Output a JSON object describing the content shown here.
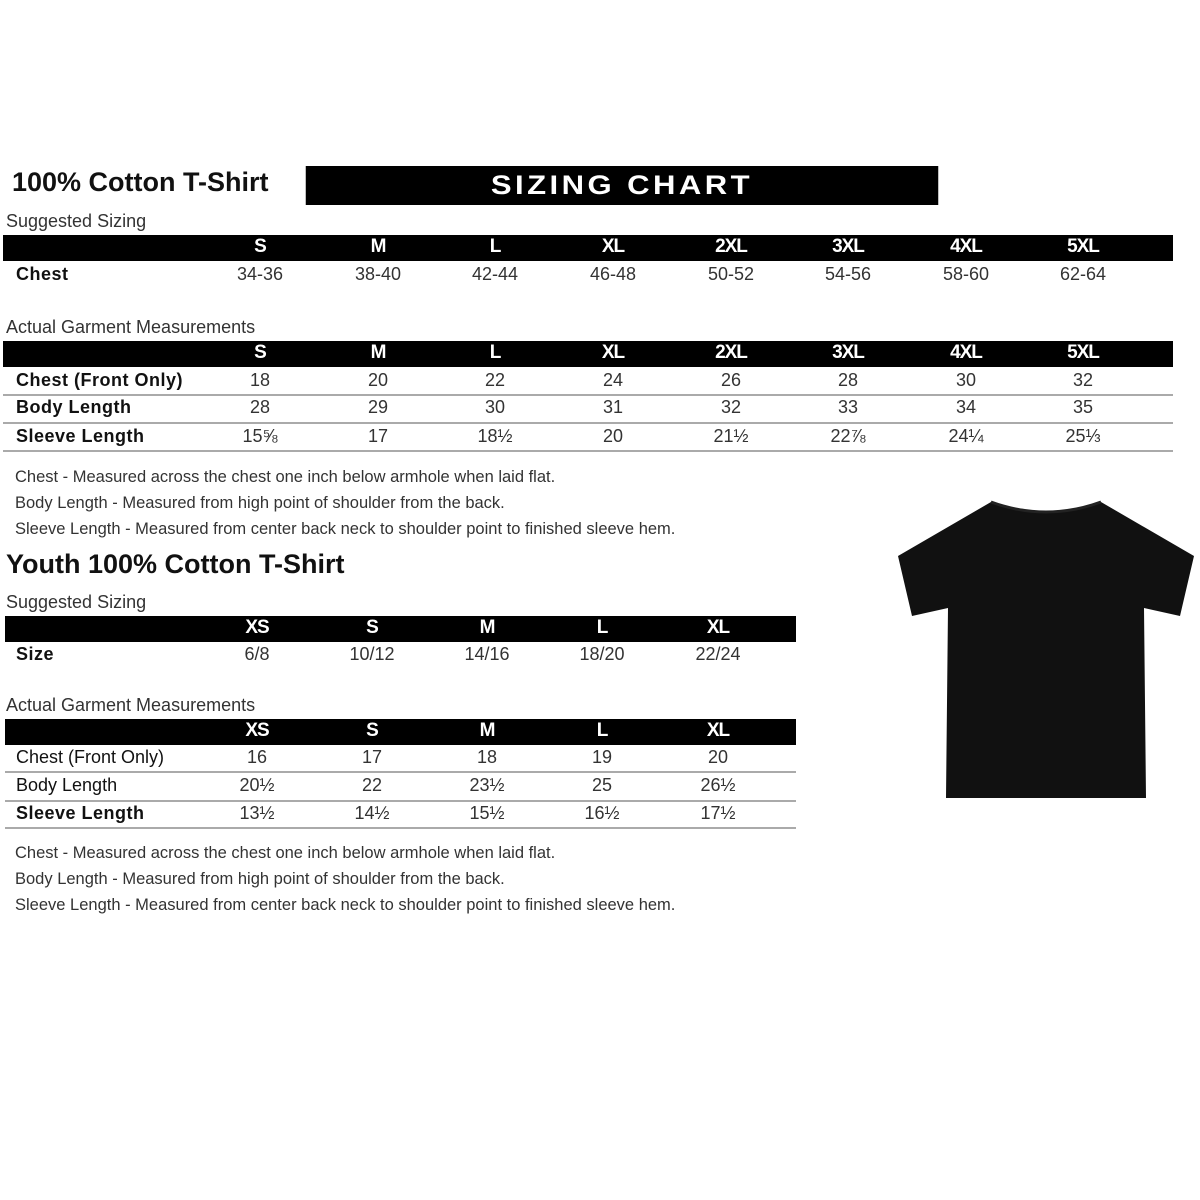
{
  "banner": "SIZING CHART",
  "adult": {
    "title": "100% Cotton T-Shirt",
    "suggested_label": "Suggested Sizing",
    "sizes": [
      "S",
      "M",
      "L",
      "XL",
      "2XL",
      "3XL",
      "4XL",
      "5XL"
    ],
    "suggested_rows": [
      {
        "label": "Chest",
        "values": [
          "34-36",
          "38-40",
          "42-44",
          "46-48",
          "50-52",
          "54-56",
          "58-60",
          "62-64"
        ]
      }
    ],
    "actual_label": "Actual Garment Measurements",
    "actual_rows": [
      {
        "label": "Chest (Front Only)",
        "values": [
          "18",
          "20",
          "22",
          "24",
          "26",
          "28",
          "30",
          "32"
        ]
      },
      {
        "label": "Body Length",
        "values": [
          "28",
          "29",
          "30",
          "31",
          "32",
          "33",
          "34",
          "35"
        ]
      },
      {
        "label": "Sleeve Length",
        "values": [
          "15⅝",
          "17",
          "18½",
          "20",
          "21½",
          "22⅞",
          "24¼",
          "25⅓"
        ]
      }
    ],
    "notes": [
      "Chest - Measured across the chest one inch below armhole when laid flat.",
      "Body Length - Measured from high point of shoulder from the back.",
      "Sleeve Length - Measured from center back neck to shoulder point to finished sleeve hem."
    ]
  },
  "youth": {
    "title": "Youth 100% Cotton T-Shirt",
    "suggested_label": "Suggested Sizing",
    "sizes": [
      "XS",
      "S",
      "M",
      "L",
      "XL"
    ],
    "suggested_rows": [
      {
        "label": "Size",
        "values": [
          "6/8",
          "10/12",
          "14/16",
          "18/20",
          "22/24"
        ]
      }
    ],
    "actual_label": "Actual Garment Measurements",
    "actual_rows": [
      {
        "label": "Chest (Front Only)",
        "values": [
          "16",
          "17",
          "18",
          "19",
          "20"
        ]
      },
      {
        "label": "Body Length",
        "values": [
          "20½",
          "22",
          "23½",
          "25",
          "26½"
        ]
      },
      {
        "label": "Sleeve Length",
        "values": [
          "13½",
          "14½",
          "15½",
          "16½",
          "17½"
        ]
      }
    ],
    "notes": [
      "Chest - Measured across the chest one inch below armhole when laid flat.",
      "Body Length - Measured from high point of shoulder from the back.",
      "Sleeve Length - Measured from center back neck to shoulder point to finished sleeve hem."
    ]
  },
  "image": {
    "icon": "black-tshirt",
    "color": "#111111"
  }
}
